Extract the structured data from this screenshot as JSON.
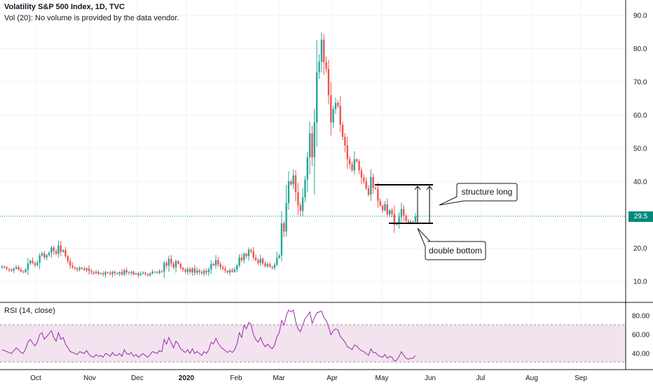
{
  "header": {
    "title": "Volatility S&P 500 Index, 1D, TVC",
    "volume_note": "Vol (20): No volume is provided by the data vendor."
  },
  "rsi_pane": {
    "label": "RSI (14, close)"
  },
  "price_badge": "29.5",
  "annotations": {
    "structure_label": "structure long",
    "double_bottom_label": "double bottom"
  },
  "colors": {
    "up": "#26a69a",
    "down": "#ef5350",
    "rsi_line": "#9c27b0",
    "rsi_band": "#f3e3ee",
    "price_line": "#00897b"
  },
  "chart_data": [
    {
      "type": "candlestick",
      "price_axis_ticks": [
        "90.0",
        "80.0",
        "70.0",
        "60.0",
        "50.0",
        "40.0",
        "30.0",
        "20.0",
        "10.0"
      ],
      "ylim": [
        3,
        93
      ],
      "time_axis_labels": [
        "Oct",
        "Nov",
        "Dec",
        "2020",
        "Feb",
        "Mar",
        "Apr",
        "May",
        "Jun",
        "Jul",
        "Aug",
        "Sep"
      ],
      "last_price": 29.5,
      "close_series": [
        14.5,
        14.2,
        13.8,
        13.5,
        13.2,
        13.8,
        14.3,
        13.6,
        13.0,
        12.8,
        13.6,
        15.4,
        16.2,
        15.5,
        14.9,
        15.6,
        17.8,
        18.4,
        17.2,
        17.9,
        18.6,
        20.2,
        19.1,
        18.3,
        20.8,
        18.9,
        19.4,
        17.6,
        16.1,
        14.8,
        14.2,
        13.9,
        13.5,
        14.1,
        13.8,
        13.4,
        13.9,
        13.1,
        12.7,
        12.4,
        12.9,
        12.3,
        12.5,
        12.1,
        12.8,
        12.6,
        12.2,
        12.9,
        12.4,
        12.3,
        12.8,
        12.1,
        13.4,
        12.7,
        12.5,
        12.9,
        12.1,
        12.4,
        11.9,
        12.3,
        12.6,
        12.2,
        11.8,
        12.4,
        12.9,
        12.7,
        12.5,
        13.1,
        12.9,
        15.6,
        14.7,
        16.8,
        15.4,
        14.2,
        16.1,
        15.3,
        14.1,
        13.5,
        12.9,
        13.7,
        12.8,
        13.9,
        12.6,
        13.3,
        12.8,
        12.4,
        13.2,
        12.7,
        13.6,
        15.2,
        14.8,
        16.4,
        15.1,
        14.3,
        13.8,
        13.2,
        12.7,
        13.4,
        12.9,
        13.6,
        14.8,
        17.2,
        16.4,
        18.3,
        17.6,
        19.5,
        19.1,
        17.2,
        16.4,
        15.5,
        16.8,
        15.4,
        14.6,
        15.2,
        14.4,
        14.1,
        15.0,
        17.1,
        17.8,
        27.5,
        25.0,
        33.6,
        40.1,
        39.2,
        41.9,
        36.8,
        32.9,
        31.2,
        35.3,
        40.6,
        47.3,
        54.5,
        47.3,
        57.8,
        72.9,
        76.1,
        82.7,
        75.9,
        73.9,
        66.0,
        57.8,
        61.8,
        63.7,
        62.8,
        57.1,
        53.5,
        50.9,
        46.8,
        45.2,
        43.4,
        46.7,
        46.1,
        43.4,
        41.2,
        40.1,
        38.0,
        36.1,
        41.4,
        38.1,
        37.8,
        34.2,
        32.8,
        31.4,
        33.2,
        30.1,
        31.4,
        30.3,
        27.0,
        27.5,
        29.3,
        31.8,
        29.8,
        28.2,
        27.6,
        28.0,
        27.9,
        29.5
      ],
      "rsi_axis_ticks": [
        "80.00",
        "60.00",
        "40.00"
      ],
      "rsi_ylim": [
        20,
        95
      ],
      "rsi_band": [
        30,
        70
      ],
      "rsi_series": [
        44,
        43,
        42,
        41,
        40,
        43,
        46,
        44,
        41,
        40,
        45,
        52,
        55,
        51,
        48,
        52,
        60,
        62,
        55,
        58,
        61,
        64,
        57,
        53,
        62,
        55,
        57,
        50,
        46,
        42,
        41,
        40,
        39,
        42,
        41,
        40,
        43,
        39,
        37,
        36,
        39,
        37,
        38,
        36,
        40,
        39,
        37,
        41,
        38,
        38,
        40,
        37,
        44,
        40,
        39,
        41,
        37,
        39,
        36,
        38,
        40,
        38,
        36,
        39,
        42,
        41,
        40,
        43,
        42,
        55,
        50,
        57,
        51,
        46,
        53,
        50,
        45,
        43,
        41,
        44,
        40,
        45,
        40,
        42,
        40,
        38,
        42,
        40,
        44,
        52,
        50,
        56,
        51,
        47,
        45,
        43,
        41,
        43,
        41,
        44,
        50,
        62,
        57,
        70,
        66,
        73,
        71,
        60,
        55,
        52,
        57,
        51,
        47,
        50,
        47,
        45,
        49,
        58,
        62,
        75,
        70,
        80,
        86,
        84,
        86,
        74,
        66,
        63,
        70,
        77,
        80,
        84,
        72,
        78,
        83,
        84,
        85,
        78,
        75,
        68,
        60,
        64,
        66,
        65,
        58,
        55,
        52,
        47,
        46,
        44,
        49,
        48,
        45,
        43,
        42,
        40,
        38,
        45,
        41,
        41,
        38,
        37,
        36,
        39,
        35,
        37,
        36,
        32,
        33,
        37,
        42,
        38,
        35,
        34,
        35,
        35,
        38
      ]
    }
  ]
}
